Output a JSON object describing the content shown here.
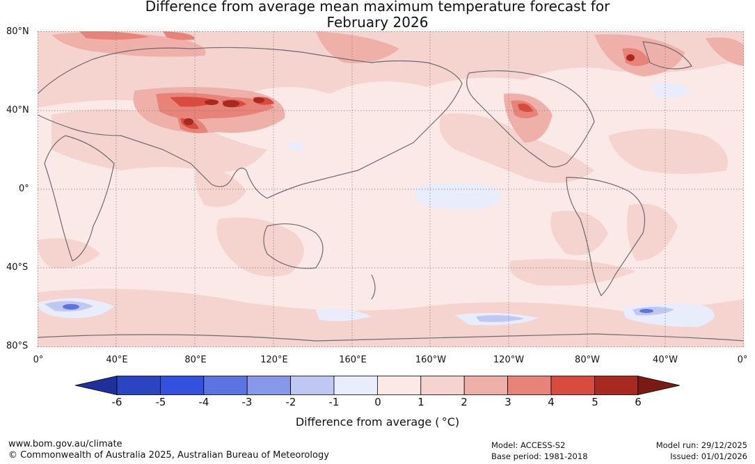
{
  "title_line1": "Difference from average mean maximum temperature forecast for",
  "title_line2": "February 2026",
  "lat_labels": [
    "80°N",
    "40°N",
    "0°",
    "40°S",
    "80°S"
  ],
  "lon_labels": [
    "0°",
    "40°E",
    "80°E",
    "120°E",
    "160°E",
    "160°W",
    "120°W",
    "80°W",
    "40°W",
    "0°"
  ],
  "colorbar": {
    "ticks": [
      "-6",
      "-5",
      "-4",
      "-3",
      "-2",
      "-1",
      "0",
      "1",
      "2",
      "3",
      "4",
      "5",
      "6"
    ],
    "colors": [
      "#1f2f9c",
      "#2a44c2",
      "#3350de",
      "#5b74e2",
      "#8797ea",
      "#bfc8f3",
      "#e8ecfb",
      "#fbe9e8",
      "#f5d3cf",
      "#efb0aa",
      "#e88379",
      "#d94b3f",
      "#a82920",
      "#7a1a14"
    ],
    "label": "Difference from average ( °C)"
  },
  "footer": {
    "website": "www.bom.gov.au/climate",
    "copyright": "© Commonwealth of Australia 2025, Australian Bureau of Meteorology",
    "model": "Model: ACCESS-S2",
    "base_period": "Base period: 1981-2018",
    "model_run": "Model run: 29/12/2025",
    "issued": "Issued: 01/01/2026"
  }
}
